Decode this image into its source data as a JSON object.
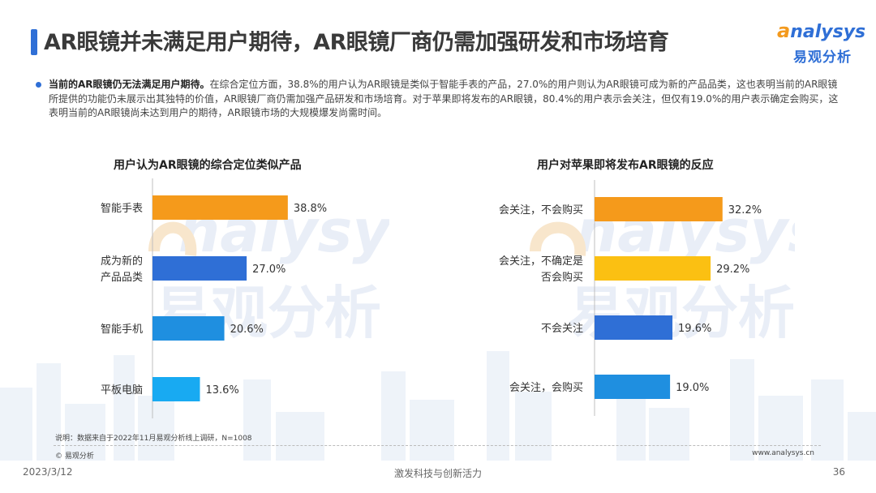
{
  "header": {
    "title": "AR眼镜并未满足用户期待，AR眼镜厂商仍需加强研发和市场培育",
    "logo_text": "nalysys",
    "logo_letter": "a",
    "logo_sub": "易观分析"
  },
  "summary": {
    "lead": "当前的AR眼镜仍无法满足用户期待。",
    "body": "在综合定位方面，38.8%的用户认为AR眼镜是类似于智能手表的产品，27.0%的用户则认为AR眼镜可成为新的产品品类，这也表明当前的AR眼镜所提供的功能仍未展示出其独特的价值，AR眼镜厂商仍需加强产品研发和市场培育。对于苹果即将发布的AR眼镜，80.4%的用户表示会关注，但仅有19.0%的用户表示确定会购买，这表明当前的AR眼镜尚未达到用户的期待，AR眼镜市场的大规模爆发尚需时间。"
  },
  "chart_data": [
    {
      "type": "bar",
      "orientation": "horizontal",
      "title": "用户认为AR眼镜的综合定位类似产品",
      "categories": [
        [
          "智能手表"
        ],
        [
          "成为新的",
          "产品品类"
        ],
        [
          "智能手机"
        ],
        [
          "平板电脑"
        ]
      ],
      "values": [
        38.8,
        27.0,
        20.6,
        13.6
      ],
      "value_labels": [
        "38.8%",
        "27.0%",
        "20.6%",
        "13.6%"
      ],
      "colors": [
        "#f59a1b",
        "#2f6fd6",
        "#1f8fe0",
        "#18aaf2"
      ],
      "xlim": [
        0,
        60
      ]
    },
    {
      "type": "bar",
      "orientation": "horizontal",
      "title": "用户对苹果即将发布AR眼镜的反应",
      "categories": [
        [
          "会关注，不会购买"
        ],
        [
          "会关注，不确定是",
          "否会购买"
        ],
        [
          "不会关注"
        ],
        [
          "会关注，会购买"
        ]
      ],
      "values": [
        32.2,
        29.2,
        19.6,
        19.0
      ],
      "value_labels": [
        "32.2%",
        "29.2%",
        "19.6%",
        "19.0%"
      ],
      "colors": [
        "#f59a1b",
        "#fbc012",
        "#2f6fd6",
        "#1f8fe0"
      ],
      "xlim": [
        0,
        50
      ]
    }
  ],
  "footer": {
    "note": "说明：数据来自于2022年11月易观分析线上调研，N=1008",
    "copyright": "© 易观分析",
    "website": "www.analysys.cn",
    "date": "2023/3/12",
    "slogan": "激发科技与创新活力",
    "page": "36"
  },
  "icons": {
    "title_marker": "title-bar-icon",
    "bullet": "bullet-dot-icon",
    "background": "city-skyline-icon"
  }
}
